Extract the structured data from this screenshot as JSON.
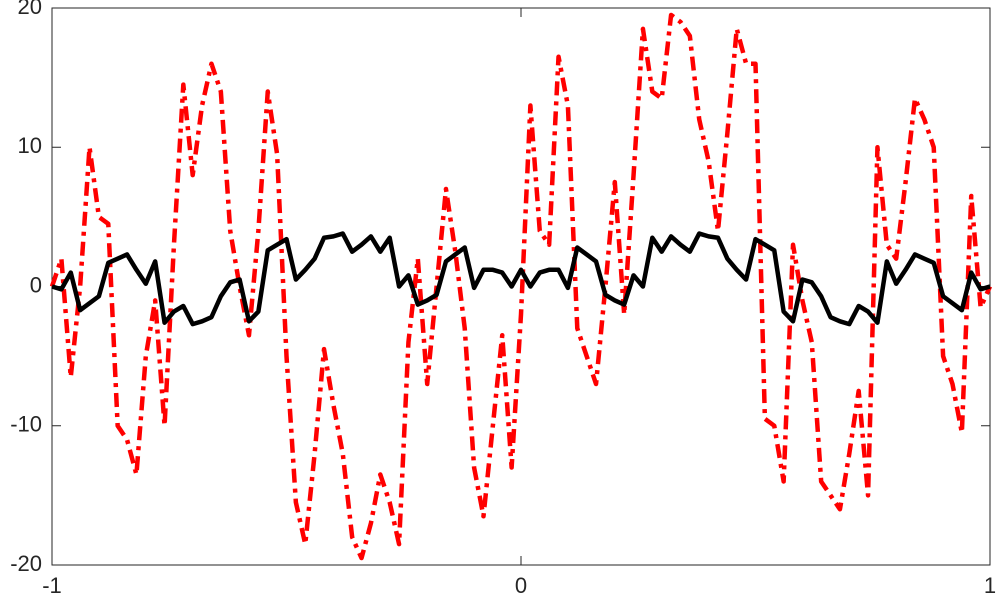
{
  "chart_data": {
    "type": "line",
    "x": [
      -1,
      -0.98,
      -0.96,
      -0.94,
      -0.92,
      -0.9,
      -0.88,
      -0.86,
      -0.84,
      -0.82,
      -0.8,
      -0.78,
      -0.76,
      -0.74,
      -0.72,
      -0.7,
      -0.68,
      -0.66,
      -0.64,
      -0.62,
      -0.6,
      -0.58,
      -0.56,
      -0.54,
      -0.52,
      -0.5,
      -0.48,
      -0.46,
      -0.44,
      -0.42,
      -0.4,
      -0.38,
      -0.36,
      -0.34,
      -0.32,
      -0.3,
      -0.28,
      -0.26,
      -0.24,
      -0.22,
      -0.2,
      -0.18,
      -0.16,
      -0.14,
      -0.12,
      -0.1,
      -0.08,
      -0.06,
      -0.04,
      -0.02,
      0,
      0.02,
      0.04,
      0.06,
      0.08,
      0.1,
      0.12,
      0.14,
      0.16,
      0.18,
      0.2,
      0.22,
      0.24,
      0.26,
      0.28,
      0.3,
      0.32,
      0.34,
      0.36,
      0.38,
      0.4,
      0.42,
      0.44,
      0.46,
      0.48,
      0.5,
      0.52,
      0.54,
      0.56,
      0.58,
      0.6,
      0.62,
      0.64,
      0.66,
      0.68,
      0.7,
      0.72,
      0.74,
      0.76,
      0.78,
      0.8,
      0.82,
      0.84,
      0.86,
      0.88,
      0.9,
      0.92,
      0.94,
      0.96,
      0.98,
      1
    ],
    "series": [
      {
        "color": "#ff0000",
        "line_style": "dashdot",
        "values": [
          0,
          2,
          -6.5,
          0,
          10,
          5,
          4.5,
          -10,
          -11,
          -13.5,
          -5,
          -1,
          -10,
          3,
          14.5,
          8,
          13,
          16,
          14,
          4,
          0,
          -3.5,
          4,
          14,
          9.5,
          -5,
          -15.5,
          -18.5,
          -12,
          -4.5,
          -8.5,
          -12,
          -18,
          -19.5,
          -17,
          -13.5,
          -15.5,
          -18.5,
          -4,
          2,
          -7,
          0,
          7,
          2.5,
          -3,
          -13,
          -16.5,
          -10,
          -3.5,
          -13,
          -2,
          13,
          4,
          3,
          16.5,
          13,
          -3,
          -5,
          -7,
          0,
          7.5,
          -2,
          8,
          18.5,
          14,
          13.5,
          19.5,
          19,
          18,
          12,
          9,
          4,
          11,
          18.5,
          16,
          16,
          -9.5,
          -10,
          -14,
          3,
          -1,
          -4,
          -14,
          -15,
          -16,
          -12,
          -7.5,
          -15,
          10,
          3,
          2,
          7.5,
          13.5,
          12,
          10,
          -5,
          -7,
          -10.5,
          6.5,
          -1.5,
          0
        ]
      },
      {
        "color": "#000000",
        "line_style": "solid",
        "values": [
          0,
          -0.2,
          1,
          -1.7,
          -1.2,
          -0.7,
          1.7,
          2,
          2.3,
          1.2,
          0.2,
          1.8,
          -2.6,
          -1.8,
          -1.4,
          -2.7,
          -2.5,
          -2.2,
          -0.7,
          0.3,
          0.5,
          -2.5,
          -1.8,
          2.6,
          3,
          3.4,
          0.5,
          1.2,
          2,
          3.5,
          3.6,
          3.8,
          2.5,
          3.0,
          3.6,
          2.5,
          3.5,
          0,
          0.8,
          -1.3,
          -1,
          -0.6,
          1.8,
          2.3,
          2.8,
          -0.1,
          1.2,
          1.2,
          1.0,
          0,
          1.2,
          0,
          1.0,
          1.2,
          1.2,
          -0.1,
          2.8,
          2.3,
          1.8,
          -0.6,
          -1,
          -1.3,
          0.8,
          0,
          3.5,
          2.5,
          3.6,
          3.0,
          2.5,
          3.8,
          3.6,
          3.5,
          2,
          1.2,
          0.5,
          3.4,
          3,
          2.6,
          -1.8,
          -2.5,
          0.5,
          0.3,
          -0.7,
          -2.2,
          -2.5,
          -2.7,
          -1.4,
          -1.8,
          -2.6,
          1.8,
          0.2,
          1.2,
          2.3,
          2,
          1.7,
          -0.7,
          -1.2,
          -1.7,
          1,
          -0.2,
          0
        ]
      }
    ],
    "xlim": [
      -1,
      1
    ],
    "xticks": [
      -1,
      0,
      1
    ],
    "ylim": [
      -20,
      20
    ],
    "yticks": [
      -20,
      -10,
      0,
      10,
      20
    ],
    "grid": false
  }
}
